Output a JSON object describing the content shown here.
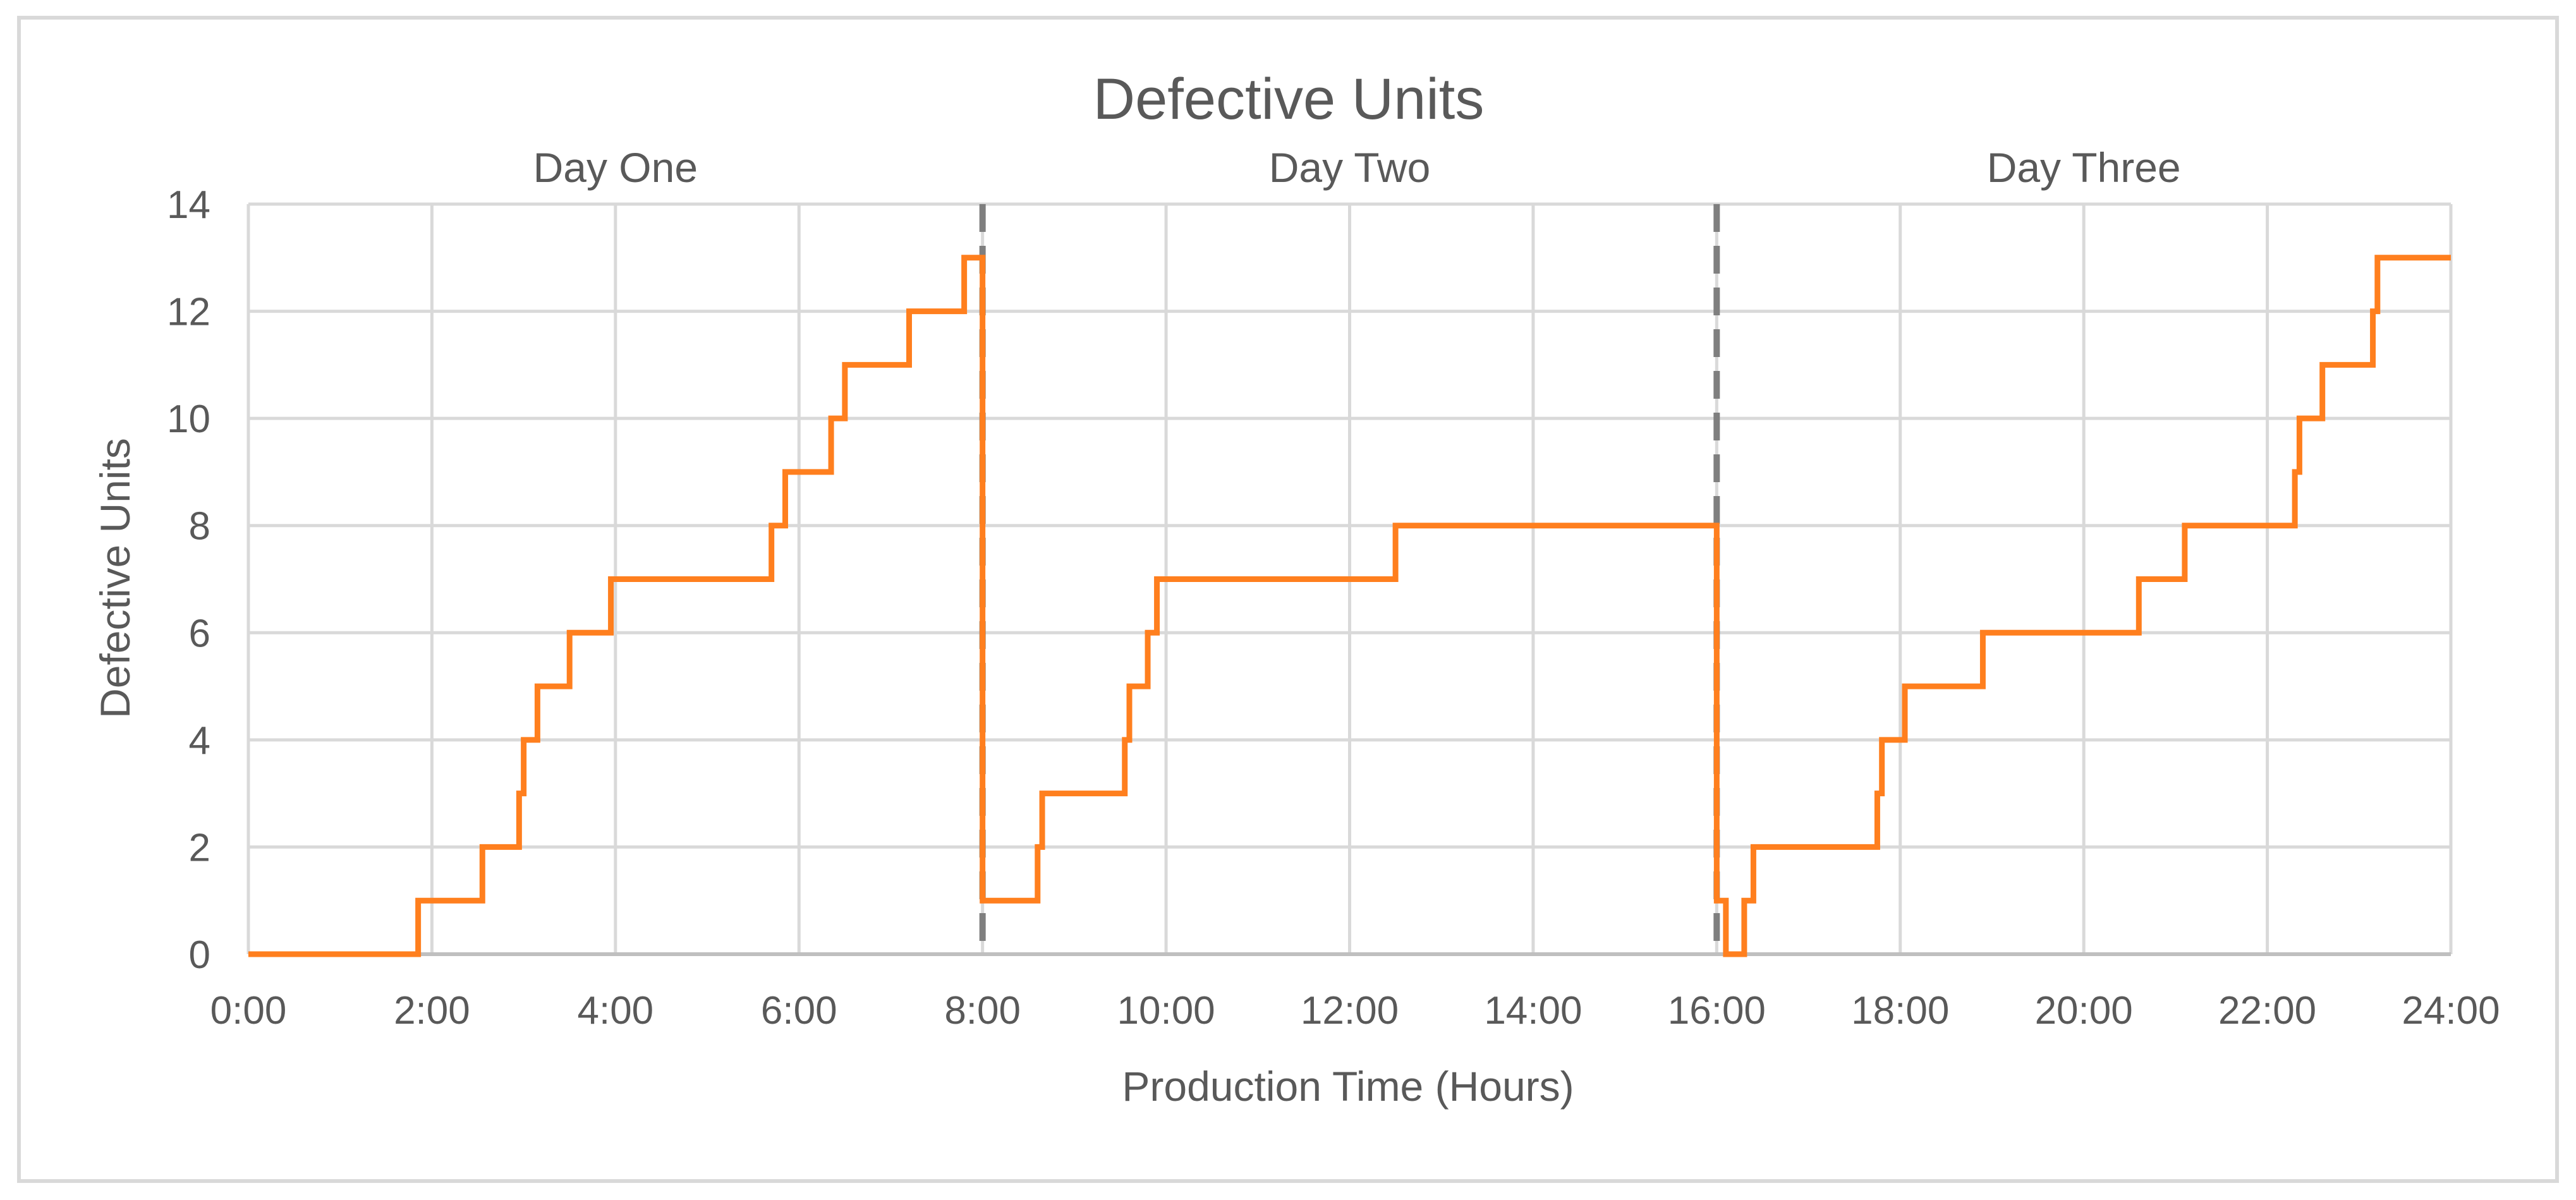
{
  "chart_data": {
    "type": "line",
    "title": "Defective Units",
    "xlabel": "Production Time (Hours)",
    "ylabel": "Defective Units",
    "xlim": [
      0,
      24
    ],
    "ylim": [
      0,
      14
    ],
    "x_unit": "hours",
    "x_ticks": [
      "0:00",
      "2:00",
      "4:00",
      "6:00",
      "8:00",
      "10:00",
      "12:00",
      "14:00",
      "16:00",
      "18:00",
      "20:00",
      "22:00",
      "24:00"
    ],
    "y_ticks": [
      "0",
      "2",
      "4",
      "6",
      "8",
      "10",
      "12",
      "14"
    ],
    "grid": true,
    "legend": "none",
    "day_labels": [
      {
        "label": "Day One",
        "center_hour": 4
      },
      {
        "label": "Day Two",
        "center_hour": 12
      },
      {
        "label": "Day Three",
        "center_hour": 20
      }
    ],
    "shift_boundaries": [
      8,
      16
    ],
    "series": [
      {
        "color": "#FF7F1E",
        "step": "post",
        "x": [
          0,
          1.85,
          2.55,
          2.95,
          3.0,
          3.15,
          3.5,
          3.95,
          5.7,
          5.85,
          6.35,
          6.5,
          7.2,
          7.8,
          8.0,
          8.6,
          8.65,
          9.55,
          9.6,
          9.8,
          9.9,
          12.5,
          16.0,
          16.1,
          16.3,
          16.4,
          17.75,
          17.8,
          18.05,
          18.9,
          20.6,
          21.1,
          22.3,
          22.35,
          22.6,
          23.15,
          23.2,
          24.0
        ],
        "y": [
          0,
          1,
          2,
          3,
          4,
          5,
          6,
          7,
          8,
          9,
          10,
          11,
          12,
          13,
          1,
          2,
          3,
          4,
          5,
          6,
          7,
          8,
          1,
          0,
          1,
          2,
          3,
          4,
          5,
          6,
          7,
          8,
          9,
          10,
          11,
          12,
          13,
          13
        ]
      }
    ],
    "boundary_color": "#7F7F7F",
    "grid_color": "#D9D9D9",
    "frame_color": "#D9D9D9"
  }
}
